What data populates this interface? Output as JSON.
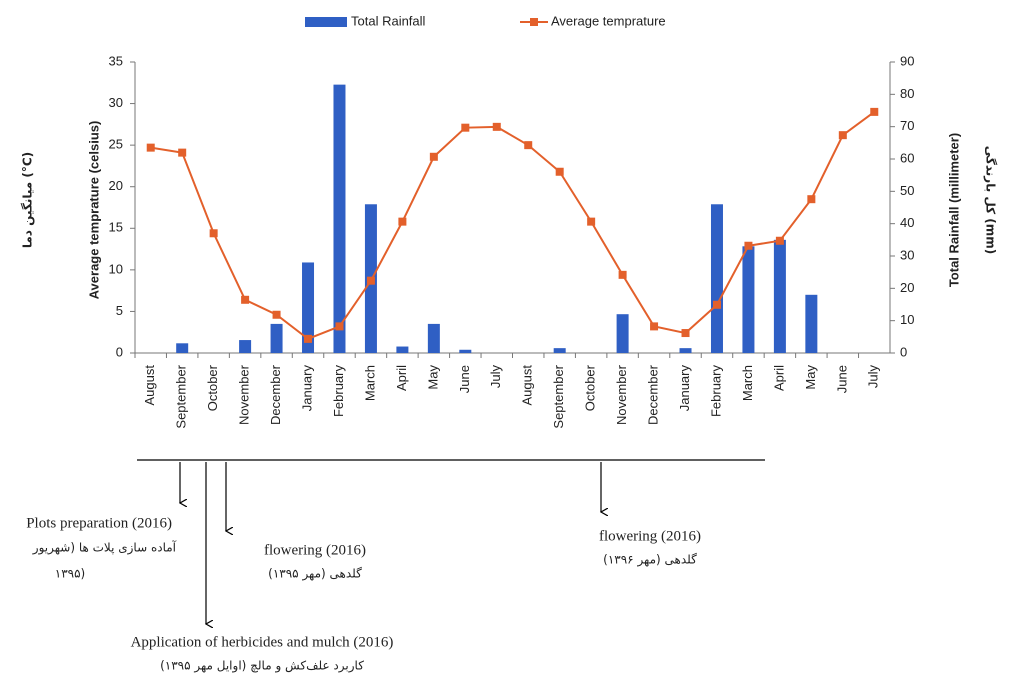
{
  "chart_data": {
    "type": "combo",
    "categories": [
      "August",
      "September",
      "October",
      "November",
      "December",
      "January",
      "February",
      "March",
      "April",
      "May",
      "June",
      "July",
      "August",
      "September",
      "October",
      "November",
      "December",
      "January",
      "February",
      "March",
      "April",
      "May",
      "June",
      "July"
    ],
    "series": [
      {
        "name": "Total  Rainfall",
        "type": "bar",
        "axis": "y2",
        "color": "#2f5fc4",
        "values": [
          0,
          3,
          0,
          4,
          9,
          28,
          83,
          46,
          2,
          9,
          1,
          0,
          0,
          1.5,
          0,
          12,
          0,
          1.5,
          46,
          33,
          35,
          18,
          0,
          0
        ]
      },
      {
        "name": "Average temprature",
        "type": "line",
        "color": "#e3602b",
        "values": [
          24.7,
          24.1,
          14.4,
          6.4,
          4.6,
          1.7,
          3.2,
          8.7,
          15.8,
          23.6,
          27.1,
          27.2,
          25,
          21.8,
          15.8,
          9.4,
          3.2,
          2.4,
          5.8,
          12.9,
          13.5,
          18.5,
          26.2,
          29
        ]
      }
    ],
    "ylabel": "Average temprature (celsius)",
    "ylabel_fa": "میانگین دما (°C)",
    "y2label": "Total Rainfall (millimeter)",
    "y2label_fa": "کل بارندگی (mm)",
    "ylim": [
      0,
      35
    ],
    "yticks": [
      0,
      5,
      10,
      15,
      20,
      25,
      30,
      35
    ],
    "y2lim": [
      0,
      90
    ],
    "y2ticks": [
      0,
      10,
      20,
      30,
      40,
      50,
      60,
      70,
      80,
      90
    ],
    "annotations": [
      {
        "lines": [
          "Plots preparation (2016)",
          "آماده سازی پلات ها (شهریور",
          "۱۳۹۵)"
        ]
      },
      {
        "lines": [
          "Application of herbicides and mulch (2016)",
          "کاربرد علف‌کش و مالچ (اوایل مهر ۱۳۹۵)"
        ]
      },
      {
        "lines": [
          "flowering (2016)",
          "گلدهی (مهر ۱۳۹۵)"
        ]
      },
      {
        "lines": [
          "flowering (2016)",
          "گلدهی (مهر ۱۳۹۶)"
        ]
      }
    ]
  }
}
